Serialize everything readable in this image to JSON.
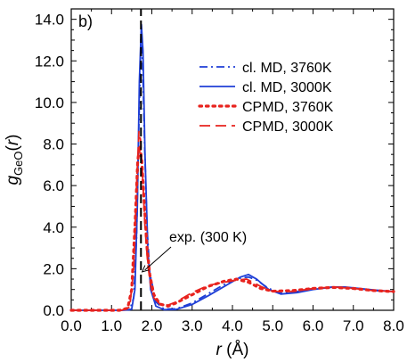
{
  "chart_data": {
    "type": "line",
    "panel_label": "b)",
    "xlabel": {
      "main": "r",
      "rest": " (Å)"
    },
    "ylabel": {
      "main": "g",
      "sub": "GeO",
      "rest": "(r)"
    },
    "xlim": [
      0.0,
      8.0
    ],
    "ylim": [
      0.0,
      14.5
    ],
    "x_ticks": [
      "0.0",
      "1.0",
      "2.0",
      "3.0",
      "4.0",
      "5.0",
      "6.0",
      "7.0",
      "8.0"
    ],
    "y_ticks": [
      "0.0",
      "2.0",
      "4.0",
      "6.0",
      "8.0",
      "10.0",
      "12.0",
      "14.0"
    ],
    "x_tick_values": [
      0,
      1,
      2,
      3,
      4,
      5,
      6,
      7,
      8
    ],
    "y_tick_values": [
      0,
      2,
      4,
      6,
      8,
      10,
      12,
      14
    ],
    "legend_position": "upper-right",
    "grid": false,
    "series": [
      {
        "name": "cl. MD, 3760K",
        "color": "#1f3fd6",
        "style": "dashdot",
        "x": [
          0.0,
          1.2,
          1.45,
          1.55,
          1.62,
          1.68,
          1.73,
          1.77,
          1.82,
          1.88,
          1.95,
          2.1,
          2.3,
          2.6,
          3.0,
          3.4,
          3.8,
          4.2,
          4.4,
          4.6,
          4.9,
          5.2,
          5.6,
          6.0,
          6.5,
          7.0,
          7.5,
          8.0
        ],
        "y": [
          0.0,
          0.0,
          0.02,
          0.6,
          3.5,
          9.0,
          13.1,
          12.0,
          8.0,
          4.0,
          1.8,
          0.4,
          0.06,
          0.07,
          0.35,
          0.8,
          1.25,
          1.55,
          1.6,
          1.45,
          1.05,
          0.82,
          0.9,
          1.02,
          1.12,
          1.08,
          0.95,
          0.9
        ]
      },
      {
        "name": "cl. MD, 3000K",
        "color": "#1f3fd6",
        "style": "solid",
        "x": [
          0.0,
          1.25,
          1.5,
          1.58,
          1.64,
          1.69,
          1.74,
          1.78,
          1.83,
          1.9,
          1.97,
          2.1,
          2.3,
          2.6,
          3.0,
          3.4,
          3.8,
          4.2,
          4.4,
          4.6,
          4.9,
          5.2,
          5.6,
          6.0,
          6.5,
          6.8,
          7.5,
          8.0
        ],
        "y": [
          0.0,
          0.0,
          0.05,
          1.0,
          5.0,
          11.0,
          13.75,
          12.5,
          7.5,
          3.0,
          1.0,
          0.2,
          0.03,
          0.04,
          0.28,
          0.7,
          1.15,
          1.6,
          1.72,
          1.5,
          1.0,
          0.78,
          0.85,
          1.0,
          1.12,
          1.12,
          0.98,
          0.9
        ]
      },
      {
        "name": "CPMD, 3760K",
        "color": "#e8231e",
        "style": "dotted",
        "x": [
          0.0,
          1.2,
          1.4,
          1.5,
          1.58,
          1.65,
          1.7,
          1.75,
          1.8,
          1.88,
          1.95,
          2.05,
          2.2,
          2.4,
          2.6,
          3.0,
          3.4,
          3.8,
          4.1,
          4.4,
          4.7,
          5.0,
          5.5,
          6.0,
          6.5,
          7.0,
          7.5,
          8.0
        ],
        "y": [
          0.0,
          0.0,
          0.1,
          1.0,
          4.0,
          7.2,
          7.9,
          7.2,
          5.5,
          3.0,
          1.7,
          0.75,
          0.3,
          0.2,
          0.35,
          0.75,
          1.15,
          1.4,
          1.5,
          1.35,
          1.05,
          0.92,
          0.95,
          1.05,
          1.1,
          1.05,
          0.95,
          0.9
        ]
      },
      {
        "name": "CPMD, 3000K",
        "color": "#e8231e",
        "style": "dashed",
        "x": [
          0.0,
          1.25,
          1.45,
          1.55,
          1.62,
          1.68,
          1.72,
          1.77,
          1.83,
          1.9,
          1.97,
          2.05,
          2.2,
          2.4,
          2.6,
          3.0,
          3.4,
          3.8,
          4.1,
          4.35,
          4.7,
          5.0,
          5.5,
          6.0,
          6.5,
          7.0,
          7.5,
          8.0
        ],
        "y": [
          0.0,
          0.0,
          0.15,
          2.0,
          6.0,
          8.6,
          8.2,
          6.5,
          4.0,
          2.2,
          1.2,
          0.6,
          0.3,
          0.25,
          0.4,
          0.85,
          1.2,
          1.35,
          1.45,
          1.5,
          1.15,
          0.9,
          0.9,
          1.05,
          1.12,
          1.05,
          0.95,
          0.9
        ]
      }
    ],
    "reference_line": {
      "x": 1.73,
      "style": "dashed",
      "color": "#000000"
    },
    "annotation": {
      "text": "exp. (300 K)",
      "arrow_to": {
        "x": 1.76,
        "y": 1.85
      }
    }
  }
}
